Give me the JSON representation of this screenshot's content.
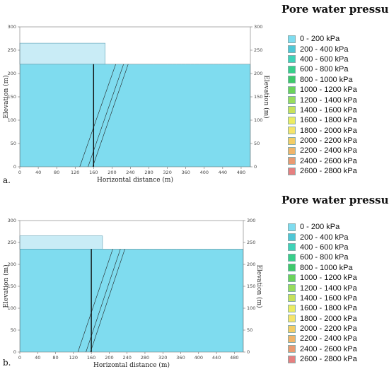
{
  "legend_title": "Pore water pressure",
  "legend_items": [
    {
      "label": "0 - 200 kPa",
      "color": "#7fdcef"
    },
    {
      "label": "200 - 400 kPa",
      "color": "#4fc7d6"
    },
    {
      "label": "400 - 600 kPa",
      "color": "#3fd3b8"
    },
    {
      "label": "600 - 800 kPa",
      "color": "#38cf8a"
    },
    {
      "label": "800 - 1000 kPa",
      "color": "#3ec96a"
    },
    {
      "label": "1000 - 1200 kPa",
      "color": "#6bd35a"
    },
    {
      "label": "1200 - 1400 kPa",
      "color": "#98dc5c"
    },
    {
      "label": "1400 - 1600 kPa",
      "color": "#c7e15a"
    },
    {
      "label": "1600 - 1800 kPa",
      "color": "#ecec62"
    },
    {
      "label": "1800 - 2000 kPa",
      "color": "#f6e46a"
    },
    {
      "label": "2000 - 2200 kPa",
      "color": "#f3cd66"
    },
    {
      "label": "2200 - 2400 kPa",
      "color": "#f0b46a"
    },
    {
      "label": "2400 - 2600 kPa",
      "color": "#e99a72"
    },
    {
      "label": "2600 - 2800 kPa",
      "color": "#e68080"
    }
  ],
  "chart_data": [
    {
      "type": "heatmap",
      "panel_label": "a.",
      "xlabel": "Horizontal distance (m)",
      "ylabel": "Elevation (m)",
      "ylabel_right": "Elevation (m)",
      "xlim": [
        0,
        500
      ],
      "ylim": [
        0,
        300
      ],
      "x_ticks": [
        0,
        40,
        80,
        120,
        160,
        200,
        240,
        280,
        320,
        360,
        400,
        440,
        480
      ],
      "y_ticks": [
        0,
        50,
        100,
        150,
        200,
        250,
        300
      ],
      "ground_surface_elevation": 220,
      "upper_terrace": {
        "x": [
          0,
          185
        ],
        "top_elevation": 265
      },
      "x_labels": [
        "0",
        "40",
        "80",
        "120",
        "160",
        "200",
        "240",
        "280",
        "320",
        "360",
        "400",
        "440",
        "480"
      ],
      "y_labels": [
        "0",
        "50",
        "100",
        "150",
        "200",
        "250",
        "300"
      ]
    },
    {
      "type": "heatmap",
      "panel_label": "b.",
      "xlabel": "Horizontal distance (m)",
      "ylabel": "Elevation (m)",
      "ylabel_right": "Elevation (m)",
      "xlim": [
        0,
        500
      ],
      "ylim": [
        0,
        300
      ],
      "x_ticks": [
        0,
        40,
        80,
        120,
        160,
        200,
        240,
        280,
        320,
        360,
        400,
        440,
        480
      ],
      "y_ticks": [
        0,
        50,
        100,
        150,
        200,
        250,
        300
      ],
      "ground_surface_elevation": 235,
      "upper_terrace": {
        "x": [
          0,
          185
        ],
        "top_elevation": 265
      },
      "x_labels": [
        "0",
        "40",
        "80",
        "120",
        "160",
        "200",
        "240",
        "280",
        "320",
        "360",
        "400",
        "440",
        "480"
      ],
      "y_labels": [
        "0",
        "50",
        "100",
        "150",
        "200",
        "250",
        "300"
      ]
    }
  ]
}
